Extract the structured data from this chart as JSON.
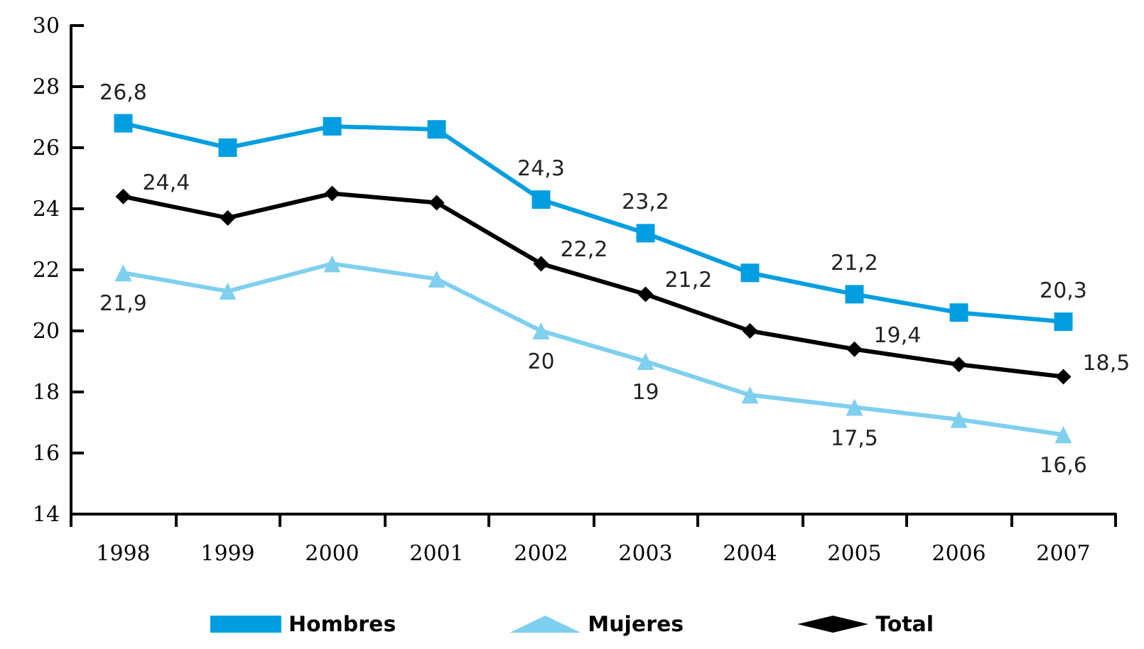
{
  "chart_data": {
    "type": "line",
    "categories": [
      "1998",
      "1999",
      "2000",
      "2001",
      "2002",
      "2003",
      "2004",
      "2005",
      "2006",
      "2007"
    ],
    "ylim": [
      14,
      30
    ],
    "yticks": [
      14,
      16,
      18,
      20,
      22,
      24,
      26,
      28,
      30
    ],
    "grid": false,
    "legend": "bottom",
    "line_style": "solid",
    "series": [
      {
        "name": "Hombres",
        "color": "#009ee0",
        "marker": "square",
        "values": [
          26.8,
          26.0,
          26.7,
          26.6,
          24.3,
          23.2,
          21.9,
          21.2,
          20.6,
          20.3
        ],
        "value_labels": [
          "26,8",
          null,
          null,
          null,
          "24,3",
          "23,2",
          null,
          "21,2",
          null,
          "20,3"
        ]
      },
      {
        "name": "Mujeres",
        "color": "#7fcfee",
        "marker": "triangle",
        "values": [
          21.9,
          21.3,
          22.2,
          21.7,
          20.0,
          19.0,
          17.9,
          17.5,
          17.1,
          16.6
        ],
        "value_labels": [
          "21,9",
          null,
          null,
          null,
          "20",
          "19",
          null,
          "17,5",
          null,
          "16,6"
        ]
      },
      {
        "name": "Total",
        "color": "#000000",
        "marker": "diamond",
        "values": [
          24.4,
          23.7,
          24.5,
          24.2,
          22.2,
          21.2,
          20.0,
          19.4,
          18.9,
          18.5
        ],
        "value_labels": [
          "24,4",
          null,
          null,
          null,
          "22,2",
          "21,2",
          null,
          "19,4",
          null,
          "18,5"
        ]
      }
    ]
  }
}
